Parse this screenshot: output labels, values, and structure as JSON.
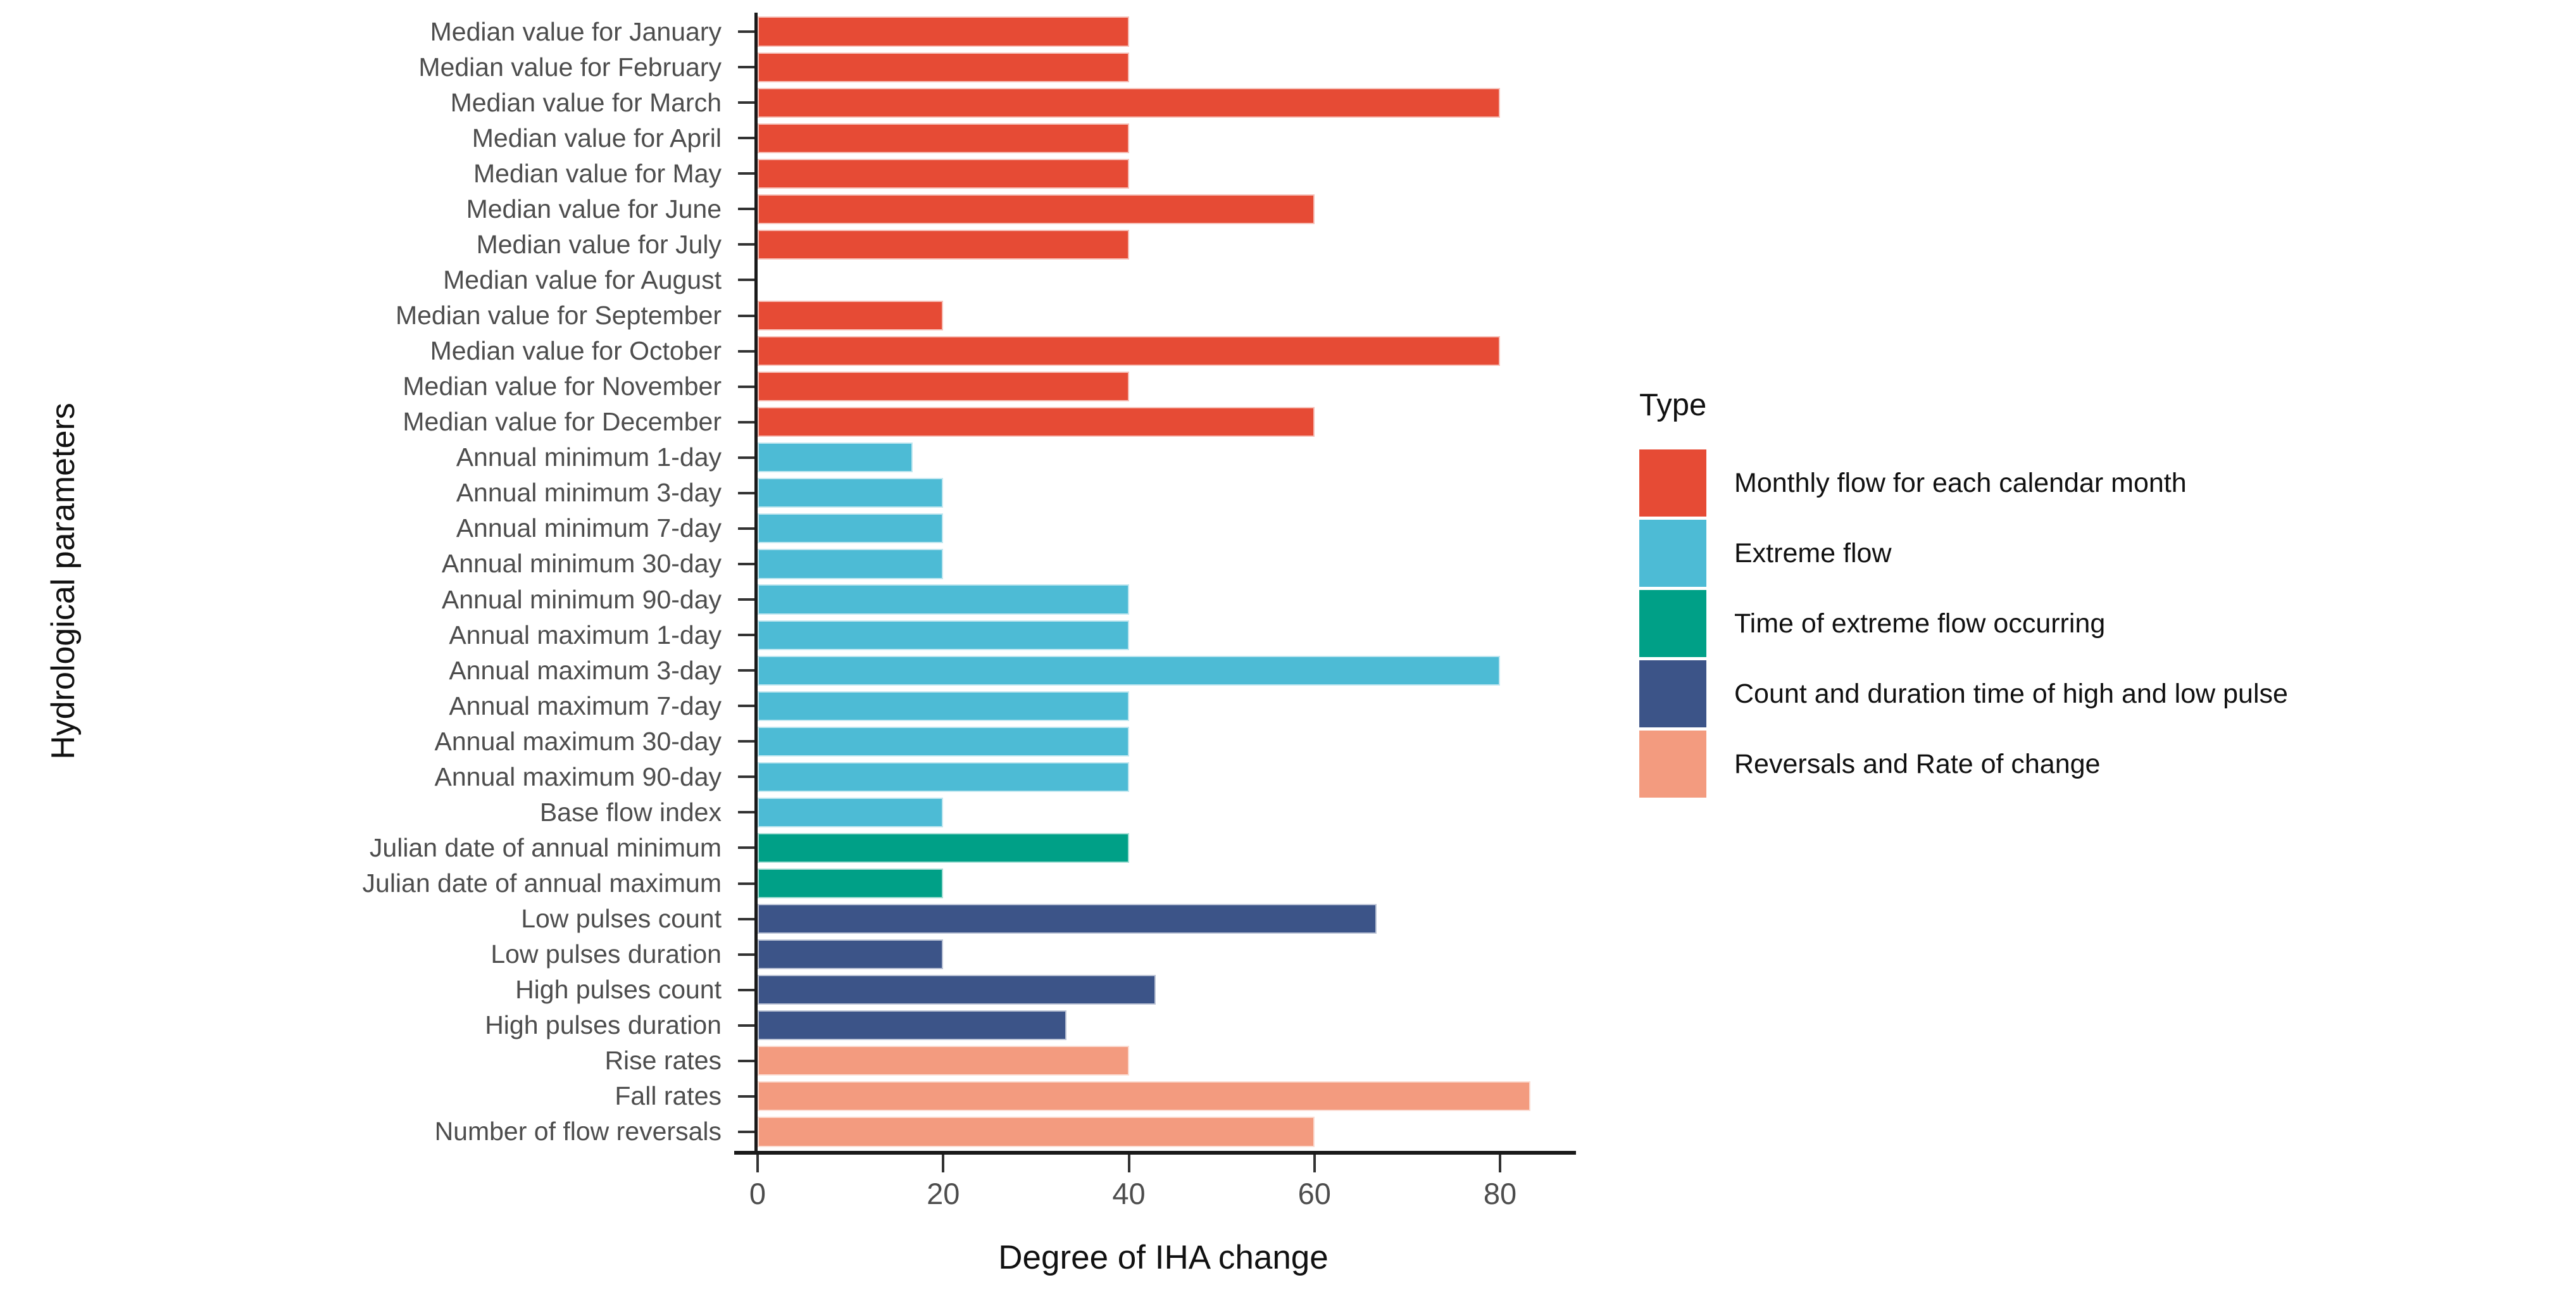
{
  "figure": {
    "y_axis_title": "Hydrological parameters",
    "x_axis_title": "Degree of IHA change",
    "legend_title": "Type"
  },
  "chart_data": {
    "type": "bar",
    "orientation": "horizontal",
    "title": "",
    "xlabel": "Degree of IHA change",
    "ylabel": "Hydrological parameters",
    "xlim": [
      0,
      87.5
    ],
    "x_ticks": [
      0,
      20,
      40,
      60,
      80
    ],
    "grid": false,
    "legend_title": "Type",
    "legend_position": "right",
    "series_types": [
      {
        "name": "Monthly flow for each calendar month",
        "color": "#E64B35"
      },
      {
        "name": "Extreme flow",
        "color": "#4DBBD5"
      },
      {
        "name": "Time of extreme flow occurring",
        "color": "#00A087"
      },
      {
        "name": "Count and duration time of high and low pulse",
        "color": "#3C5488"
      },
      {
        "name": "Reversals and Rate of change",
        "color": "#F39B7F"
      }
    ],
    "bars": [
      {
        "label": "Median value for January",
        "value": 40,
        "type": 0
      },
      {
        "label": "Median value for February",
        "value": 40,
        "type": 0
      },
      {
        "label": "Median value for March",
        "value": 80,
        "type": 0
      },
      {
        "label": "Median value for April",
        "value": 40,
        "type": 0
      },
      {
        "label": "Median value for May",
        "value": 40,
        "type": 0
      },
      {
        "label": "Median value for June",
        "value": 60,
        "type": 0
      },
      {
        "label": "Median value for July",
        "value": 40,
        "type": 0
      },
      {
        "label": "Median value for August",
        "value": 0,
        "type": 0
      },
      {
        "label": "Median value for September",
        "value": 20,
        "type": 0
      },
      {
        "label": "Median value for October",
        "value": 80,
        "type": 0
      },
      {
        "label": "Median value for November",
        "value": 40,
        "type": 0
      },
      {
        "label": "Median value for December",
        "value": 60,
        "type": 0
      },
      {
        "label": "Annual minimum 1-day",
        "value": 16.7,
        "type": 1
      },
      {
        "label": "Annual minimum 3-day",
        "value": 20,
        "type": 1
      },
      {
        "label": "Annual minimum 7-day",
        "value": 20,
        "type": 1
      },
      {
        "label": "Annual minimum 30-day",
        "value": 20,
        "type": 1
      },
      {
        "label": "Annual minimum 90-day",
        "value": 40,
        "type": 1
      },
      {
        "label": "Annual maximum 1-day",
        "value": 40,
        "type": 1
      },
      {
        "label": "Annual maximum 3-day",
        "value": 80,
        "type": 1
      },
      {
        "label": "Annual maximum 7-day",
        "value": 40,
        "type": 1
      },
      {
        "label": "Annual maximum 30-day",
        "value": 40,
        "type": 1
      },
      {
        "label": "Annual maximum 90-day",
        "value": 40,
        "type": 1
      },
      {
        "label": "Base flow index",
        "value": 20,
        "type": 1
      },
      {
        "label": "Julian date of annual minimum",
        "value": 40,
        "type": 2
      },
      {
        "label": "Julian date of annual maximum",
        "value": 20,
        "type": 2
      },
      {
        "label": "Low pulses count",
        "value": 66.7,
        "type": 3
      },
      {
        "label": "Low pulses duration",
        "value": 20,
        "type": 3
      },
      {
        "label": "High pulses count",
        "value": 42.9,
        "type": 3
      },
      {
        "label": "High pulses duration",
        "value": 33.3,
        "type": 3
      },
      {
        "label": "Rise rates",
        "value": 40,
        "type": 4
      },
      {
        "label": "Fall rates",
        "value": 83.3,
        "type": 4
      },
      {
        "label": "Number of flow reversals",
        "value": 60,
        "type": 4
      }
    ]
  }
}
